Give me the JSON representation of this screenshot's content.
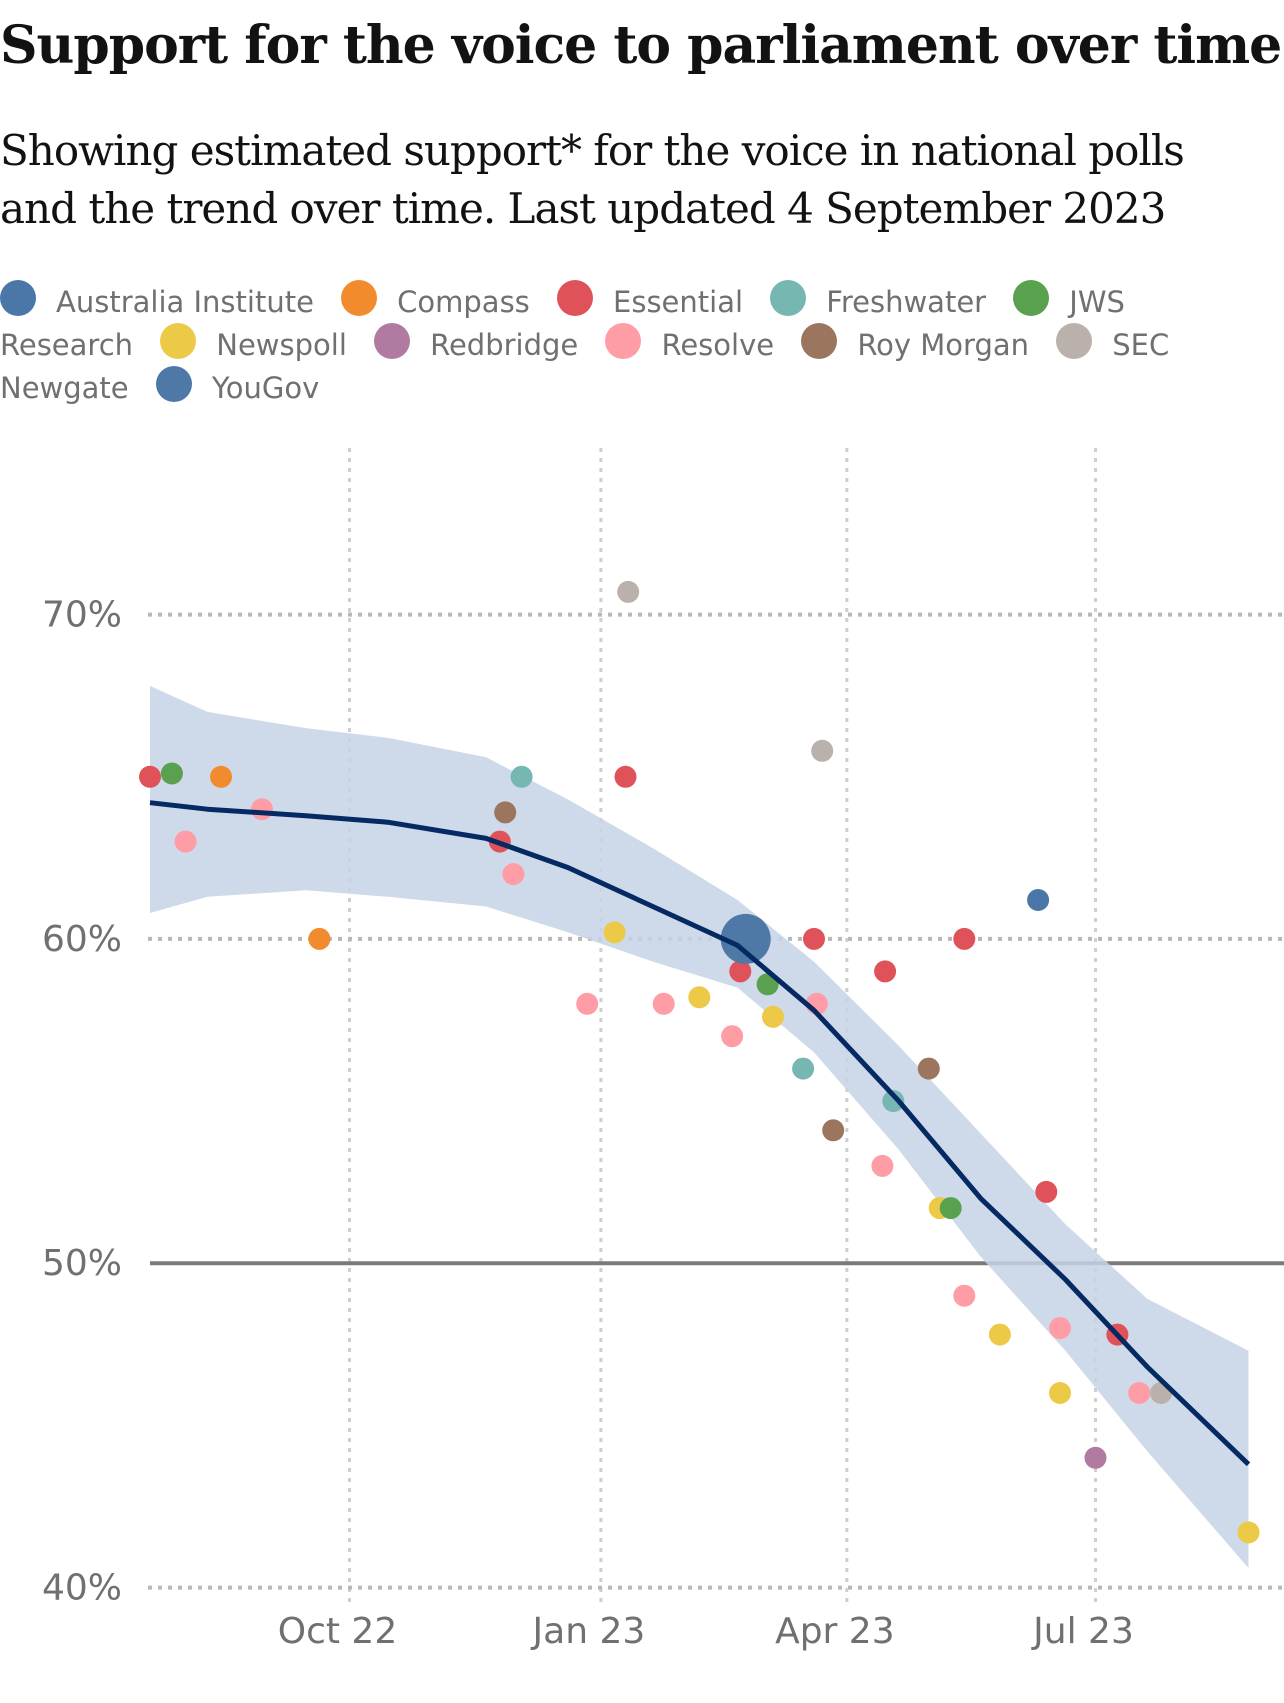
{
  "title": "Support for the voice to parliament over time",
  "subtitle": "Showing estimated support* for the voice in national polls and the trend over time. Last updated 4 September 2023",
  "pollsters": [
    {
      "name": "Australia Institute",
      "color": "#4a77a8"
    },
    {
      "name": "Compass",
      "color": "#f28b2e"
    },
    {
      "name": "Essential",
      "color": "#e0525a"
    },
    {
      "name": "Freshwater",
      "color": "#76b7b2"
    },
    {
      "name": "JWS Research",
      "color": "#59a14f"
    },
    {
      "name": "Newspoll",
      "color": "#edc948"
    },
    {
      "name": "Redbridge",
      "color": "#b07aa1"
    },
    {
      "name": "Resolve",
      "color": "#ff9da7"
    },
    {
      "name": "Roy Morgan",
      "color": "#9c755f"
    },
    {
      "name": "SEC Newgate",
      "color": "#bab0ac"
    },
    {
      "name": "YouGov",
      "color": "#4e79a7"
    }
  ],
  "chart_data": {
    "type": "scatter",
    "x_axis": {
      "type": "time",
      "range": [
        "2022-07-20",
        "2023-08-28"
      ],
      "ticks": [
        "2022-10-01",
        "2023-01-01",
        "2023-04-01",
        "2023-07-01"
      ],
      "tick_labels": [
        "Oct 22",
        "Jan 23",
        "Apr 23",
        "Jul 23"
      ]
    },
    "y_axis": {
      "range": [
        39,
        76
      ],
      "ticks": [
        40,
        50,
        60,
        70
      ],
      "tick_labels": [
        "40%",
        "50%",
        "60%",
        "70%"
      ],
      "reference_line": 50
    },
    "grid": true,
    "polls": [
      {
        "date": "2022-07-20",
        "support": 65,
        "pollster": "Essential"
      },
      {
        "date": "2022-07-28",
        "support": 65.1,
        "pollster": "JWS Research"
      },
      {
        "date": "2022-08-02",
        "support": 63,
        "pollster": "Resolve"
      },
      {
        "date": "2022-08-15",
        "support": 65,
        "pollster": "Compass"
      },
      {
        "date": "2022-08-30",
        "support": 64,
        "pollster": "Resolve"
      },
      {
        "date": "2022-09-20",
        "support": 60,
        "pollster": "Compass"
      },
      {
        "date": "2022-11-25",
        "support": 63,
        "pollster": "Essential"
      },
      {
        "date": "2022-11-27",
        "support": 63.9,
        "pollster": "Roy Morgan"
      },
      {
        "date": "2022-11-30",
        "support": 62,
        "pollster": "Resolve"
      },
      {
        "date": "2022-12-03",
        "support": 65,
        "pollster": "Freshwater"
      },
      {
        "date": "2022-12-27",
        "support": 58,
        "pollster": "Resolve"
      },
      {
        "date": "2023-01-06",
        "support": 60.2,
        "pollster": "Newspoll"
      },
      {
        "date": "2023-01-10",
        "support": 65,
        "pollster": "Essential"
      },
      {
        "date": "2023-01-11",
        "support": 70.7,
        "pollster": "SEC Newgate"
      },
      {
        "date": "2023-01-24",
        "support": 58,
        "pollster": "Resolve"
      },
      {
        "date": "2023-02-06",
        "support": 58.2,
        "pollster": "Newspoll"
      },
      {
        "date": "2023-02-18",
        "support": 57,
        "pollster": "Resolve"
      },
      {
        "date": "2023-02-21",
        "support": 59,
        "pollster": "Essential"
      },
      {
        "date": "2023-02-23",
        "support": 60,
        "pollster": "YouGov"
      },
      {
        "date": "2023-03-03",
        "support": 58.6,
        "pollster": "JWS Research"
      },
      {
        "date": "2023-03-05",
        "support": 57.6,
        "pollster": "Newspoll"
      },
      {
        "date": "2023-03-16",
        "support": 56,
        "pollster": "Freshwater"
      },
      {
        "date": "2023-03-20",
        "support": 60,
        "pollster": "Essential"
      },
      {
        "date": "2023-03-21",
        "support": 58,
        "pollster": "Resolve"
      },
      {
        "date": "2023-03-23",
        "support": 65.8,
        "pollster": "SEC Newgate"
      },
      {
        "date": "2023-03-27",
        "support": 54.1,
        "pollster": "Roy Morgan"
      },
      {
        "date": "2023-04-15",
        "support": 59,
        "pollster": "Essential"
      },
      {
        "date": "2023-04-14",
        "support": 53,
        "pollster": "Resolve"
      },
      {
        "date": "2023-04-18",
        "support": 55,
        "pollster": "Freshwater"
      },
      {
        "date": "2023-05-01",
        "support": 56,
        "pollster": "Roy Morgan"
      },
      {
        "date": "2023-05-05",
        "support": 51.7,
        "pollster": "Newspoll"
      },
      {
        "date": "2023-05-09",
        "support": 51.7,
        "pollster": "JWS Research"
      },
      {
        "date": "2023-05-14",
        "support": 49,
        "pollster": "Resolve"
      },
      {
        "date": "2023-05-14",
        "support": 60,
        "pollster": "Essential"
      },
      {
        "date": "2023-05-27",
        "support": 47.8,
        "pollster": "Newspoll"
      },
      {
        "date": "2023-06-10",
        "support": 61.2,
        "pollster": "Australia Institute"
      },
      {
        "date": "2023-06-13",
        "support": 52.2,
        "pollster": "Essential"
      },
      {
        "date": "2023-06-18",
        "support": 48,
        "pollster": "Resolve"
      },
      {
        "date": "2023-06-18",
        "support": 46,
        "pollster": "Newspoll"
      },
      {
        "date": "2023-07-01",
        "support": 44,
        "pollster": "Redbridge"
      },
      {
        "date": "2023-07-09",
        "support": 47.8,
        "pollster": "Essential"
      },
      {
        "date": "2023-07-17",
        "support": 46,
        "pollster": "Resolve"
      },
      {
        "date": "2023-07-25",
        "support": 46,
        "pollster": "SEC Newgate"
      },
      {
        "date": "2023-08-26",
        "support": 41.7,
        "pollster": "Newspoll"
      }
    ],
    "trend": [
      {
        "date": "2022-07-20",
        "value": 64.2,
        "low": 60.8,
        "high": 67.8
      },
      {
        "date": "2022-08-10",
        "value": 64.0,
        "low": 61.3,
        "high": 67.0
      },
      {
        "date": "2022-09-15",
        "value": 63.8,
        "low": 61.5,
        "high": 66.5
      },
      {
        "date": "2022-10-15",
        "value": 63.6,
        "low": 61.3,
        "high": 66.2
      },
      {
        "date": "2022-11-20",
        "value": 63.1,
        "low": 61.0,
        "high": 65.6
      },
      {
        "date": "2022-12-20",
        "value": 62.2,
        "low": 60.2,
        "high": 64.3
      },
      {
        "date": "2023-01-20",
        "value": 61.0,
        "low": 59.3,
        "high": 62.8
      },
      {
        "date": "2023-02-20",
        "value": 59.8,
        "low": 58.5,
        "high": 61.2
      },
      {
        "date": "2023-03-20",
        "value": 57.8,
        "low": 56.5,
        "high": 59.3
      },
      {
        "date": "2023-04-20",
        "value": 55.0,
        "low": 53.5,
        "high": 56.7
      },
      {
        "date": "2023-05-20",
        "value": 52.0,
        "low": 50.2,
        "high": 54.0
      },
      {
        "date": "2023-06-20",
        "value": 49.5,
        "low": 47.3,
        "high": 51.2
      },
      {
        "date": "2023-07-20",
        "value": 46.8,
        "low": 44.2,
        "high": 48.9
      },
      {
        "date": "2023-08-26",
        "value": 43.8,
        "low": 40.6,
        "high": 47.3
      }
    ]
  }
}
